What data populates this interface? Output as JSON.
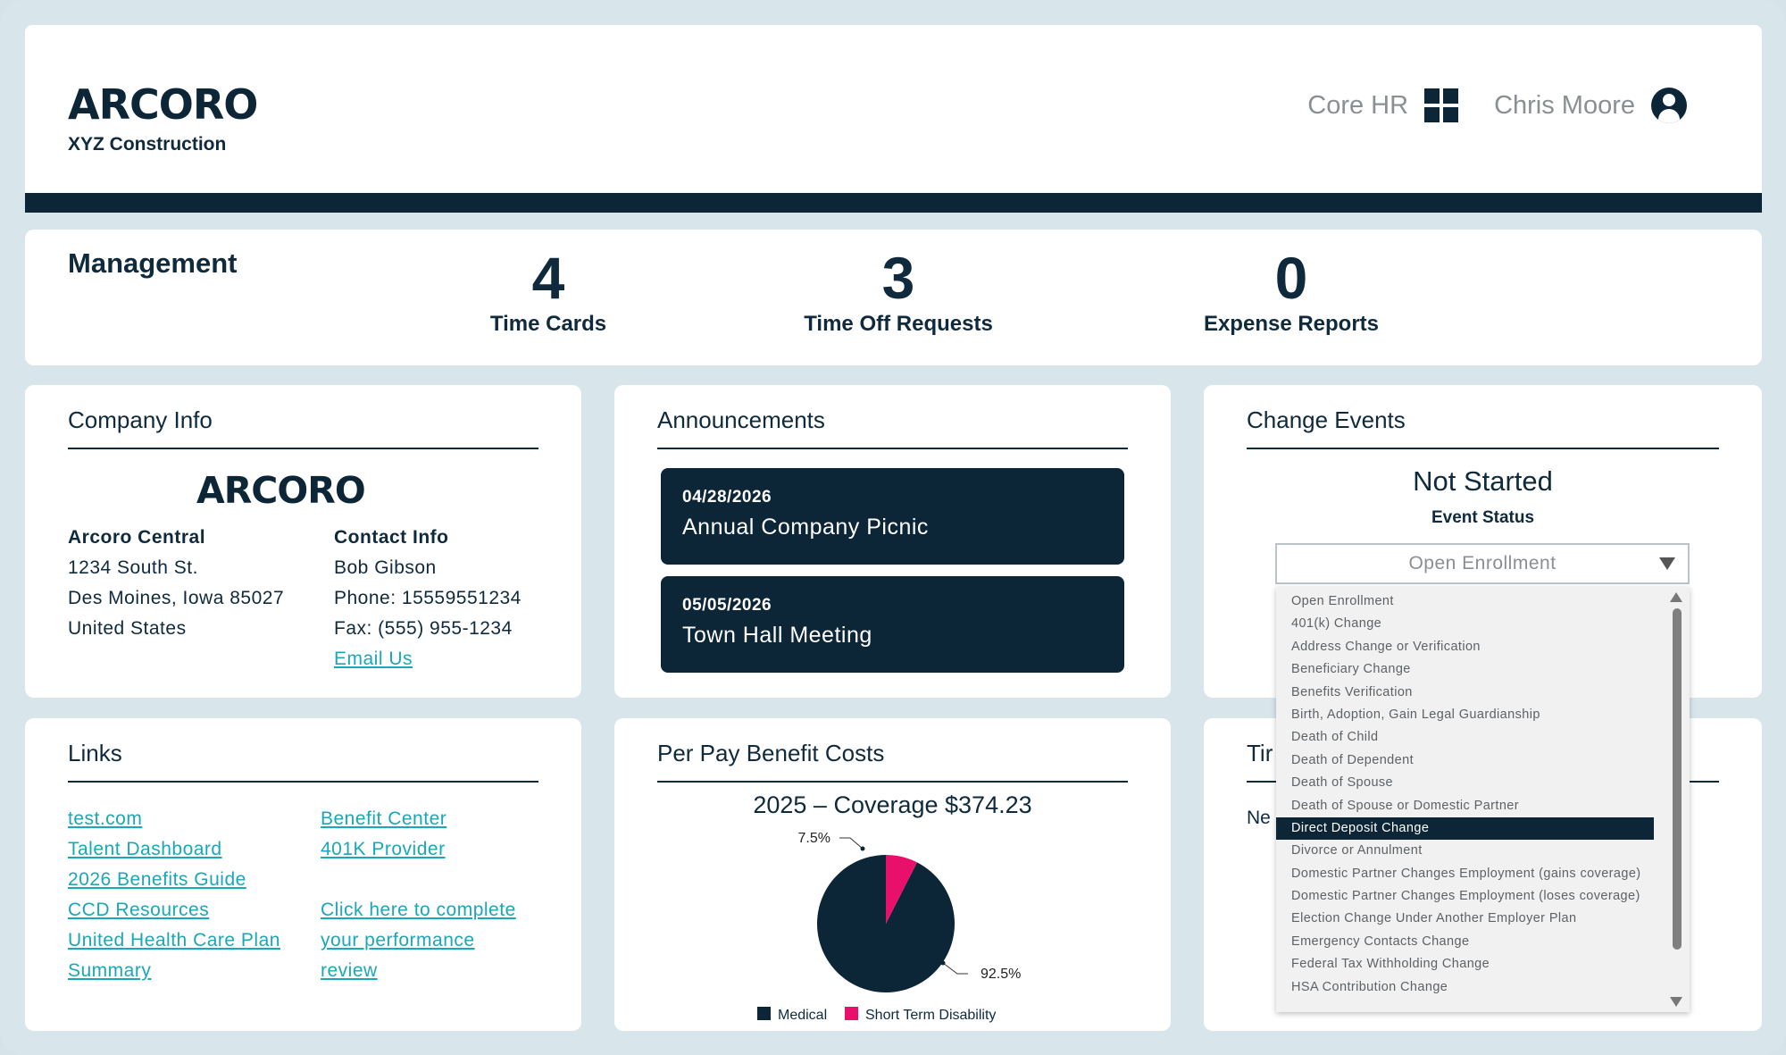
{
  "header": {
    "logo": "ARCORO",
    "company": "XYZ Construction",
    "module": "Core HR",
    "user": "Chris Moore"
  },
  "management": {
    "title": "Management",
    "stats": [
      {
        "value": "4",
        "label": "Time Cards"
      },
      {
        "value": "3",
        "label": "Time Off Requests"
      },
      {
        "value": "0",
        "label": "Expense Reports"
      }
    ]
  },
  "company_info": {
    "title": "Company Info",
    "logo": "ARCORO",
    "address": {
      "name": "Arcoro Central",
      "line1": "1234 South St.",
      "line2": "Des Moines, Iowa 85027",
      "country": "United States"
    },
    "contact": {
      "heading": "Contact Info",
      "name": "Bob Gibson",
      "phone": "Phone: 15559551234",
      "fax": "Fax: (555) 955-1234",
      "email_link": "Email Us"
    }
  },
  "announcements": {
    "title": "Announcements",
    "items": [
      {
        "date": "04/28/2026",
        "text": "Annual Company Picnic"
      },
      {
        "date": "05/05/2026",
        "text": "Town Hall Meeting"
      }
    ]
  },
  "change_events": {
    "title": "Change Events",
    "status": "Not Started",
    "status_label": "Event Status",
    "selected": "Open Enrollment",
    "options": [
      "Open Enrollment",
      "401(k) Change",
      "Address Change or Verification",
      "Beneficiary Change",
      "Benefits Verification",
      "Birth, Adoption, Gain Legal Guardianship",
      "Death of Child",
      "Death of Dependent",
      "Death of Spouse",
      "Death of Spouse or Domestic Partner",
      "Direct Deposit Change",
      "Divorce or Annulment",
      "Domestic Partner Changes Employment (gains coverage)",
      "Domestic Partner Changes Employment (loses coverage)",
      "Election Change Under Another Employer Plan",
      "Emergency Contacts Change",
      "Federal Tax Withholding Change",
      "HSA Contribution Change"
    ],
    "highlighted": "Direct Deposit Change"
  },
  "links": {
    "title": "Links",
    "col1": [
      "test.com",
      "Talent Dashboard",
      "2026 Benefits Guide",
      "CCD Resources",
      "United Health Care Plan",
      "Summary"
    ],
    "col2": [
      "Benefit Center",
      "401K Provider",
      "",
      "Click here to complete",
      "your performance",
      "review"
    ]
  },
  "benefits": {
    "title": "Per Pay Benefit Costs"
  },
  "chart_data": {
    "type": "pie",
    "title": "2025 – Coverage $374.23",
    "categories": [
      "Medical",
      "Short Term Disability"
    ],
    "values": [
      92.5,
      7.5
    ],
    "labels": [
      "92.5%",
      "7.5%"
    ],
    "colors": [
      "#0c2638",
      "#e8106a"
    ],
    "legend": "bottom"
  },
  "time_panel": {
    "title": "Tir",
    "text": "Ne"
  }
}
